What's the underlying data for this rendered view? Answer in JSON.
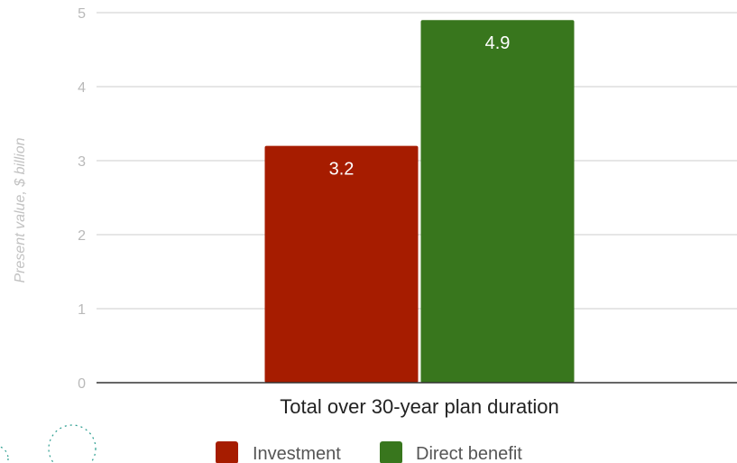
{
  "chart_data": {
    "type": "bar",
    "categories": [
      "Total over 30-year plan duration"
    ],
    "series": [
      {
        "name": "Investment",
        "values": [
          3.2
        ],
        "color": "#a61c00",
        "label": "3.2"
      },
      {
        "name": "Direct benefit",
        "values": [
          4.9
        ],
        "color": "#38761d",
        "label": "4.9"
      }
    ],
    "title": "",
    "xlabel": "",
    "ylabel": "Present value, $ billion",
    "ylim": [
      0,
      5
    ],
    "yticks": [
      "0",
      "1",
      "2",
      "3",
      "4",
      "5"
    ],
    "grid": true,
    "legend_position": "bottom"
  }
}
